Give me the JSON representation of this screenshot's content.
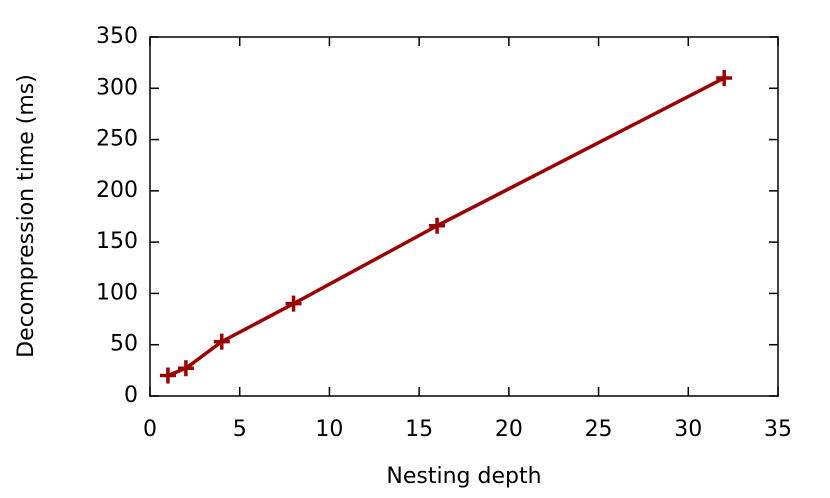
{
  "chart_data": {
    "type": "line",
    "xlabel": "Nesting depth",
    "ylabel": "Decompression time (ms)",
    "x": [
      1,
      2,
      4,
      8,
      16,
      32
    ],
    "series": [
      {
        "color": "#990000",
        "values": [
          20,
          27,
          53,
          90,
          166,
          310
        ]
      }
    ],
    "xlim": [
      0,
      35
    ],
    "xticks": [
      0,
      5,
      10,
      15,
      20,
      25,
      30,
      35
    ],
    "ylim": [
      0,
      350
    ],
    "yticks": [
      0,
      50,
      100,
      150,
      200,
      250,
      300,
      350
    ],
    "grid": false
  }
}
